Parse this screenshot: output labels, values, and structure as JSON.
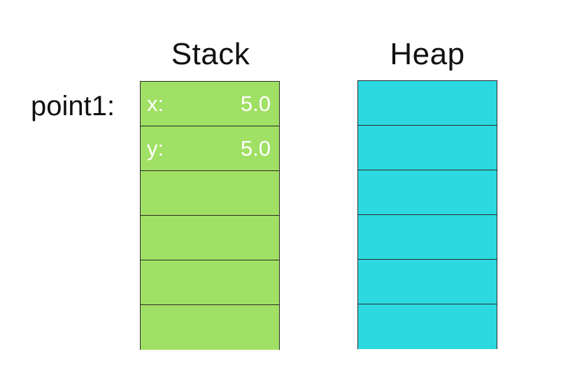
{
  "stack": {
    "title": "Stack",
    "variable_label": "point1:",
    "fields": [
      {
        "name": "x:",
        "value": "5.0"
      },
      {
        "name": "y:",
        "value": "5.0"
      }
    ],
    "cell_count": 6,
    "color": "#a0e064"
  },
  "heap": {
    "title": "Heap",
    "cell_count": 6,
    "color": "#2cd9e0"
  }
}
